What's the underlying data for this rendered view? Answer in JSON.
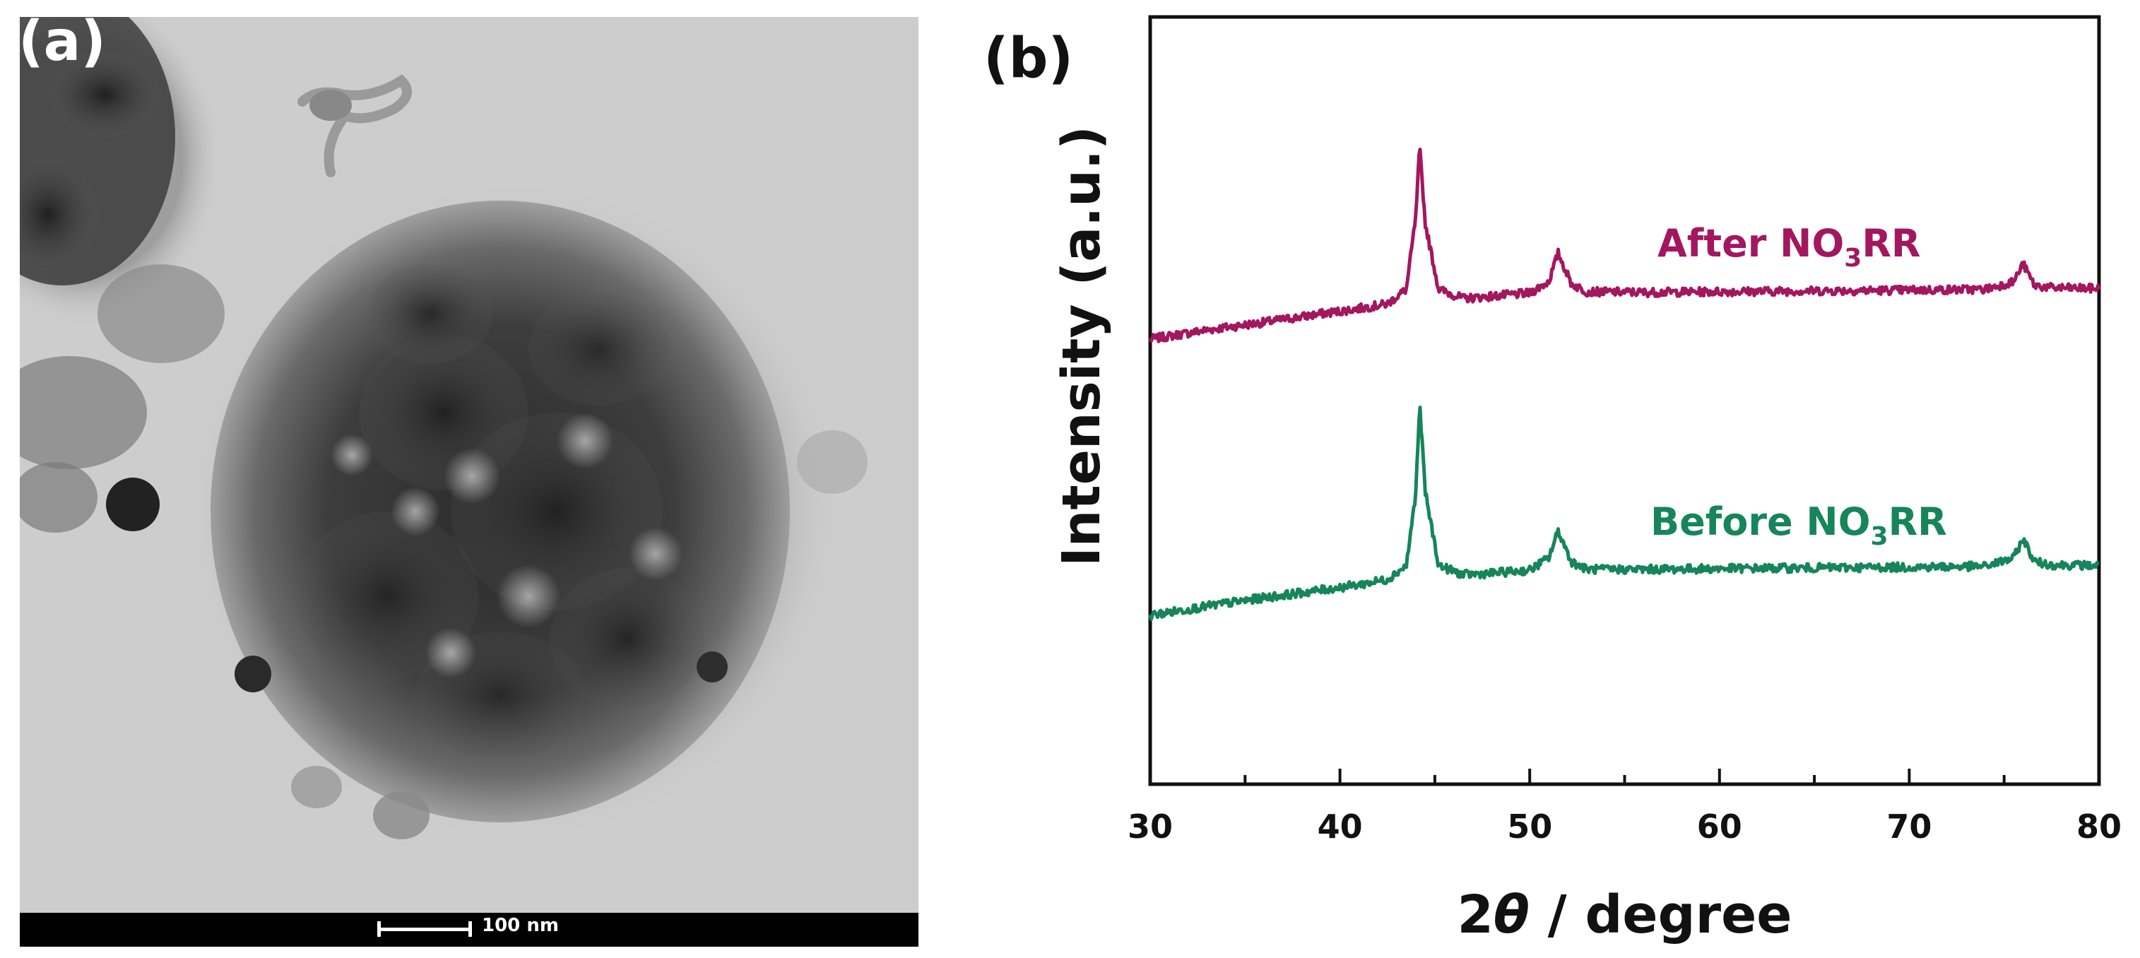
{
  "panel_a": {
    "label": "(a)",
    "scale_bar": "100 nm"
  },
  "panel_b": {
    "label": "(b)"
  },
  "colors": {
    "after": "#a3175f",
    "before": "#16855a",
    "axis": "#111111"
  },
  "chart_data": {
    "type": "line",
    "title": "",
    "xlabel": "2θ / degree",
    "xlabel_prefix": "2",
    "xlabel_symbol": "θ",
    "xlabel_suffix": " / degree",
    "ylabel": "Intensity (a.u.)",
    "xlim": [
      30,
      80
    ],
    "ylim": [
      0,
      100
    ],
    "xticks": [
      "30",
      "40",
      "50",
      "60",
      "70",
      "80"
    ],
    "yticks_shown": false,
    "series": [
      {
        "name": "After NO3RR",
        "label_main": "After NO",
        "label_sub": "3",
        "label_end": "RR",
        "color": "#a3175f",
        "baseline": 58,
        "x": [
          30,
          33,
          36,
          39,
          41,
          42.5,
          43.5,
          44.0,
          44.2,
          44.5,
          45.2,
          46.5,
          48,
          50,
          51,
          51.5,
          52.2,
          53,
          56,
          60,
          65,
          70,
          74,
          75.5,
          76.0,
          76.6,
          77.5,
          80
        ],
        "values": [
          58.0,
          59.2,
          60.2,
          61.3,
          62.0,
          62.6,
          64.5,
          74.0,
          83.0,
          73.0,
          64.5,
          63.3,
          63.6,
          64.0,
          65.5,
          69.2,
          65.2,
          64.2,
          64.1,
          64.2,
          64.3,
          64.4,
          64.5,
          65.5,
          67.8,
          65.0,
          64.7,
          64.6
        ]
      },
      {
        "name": "Before NO3RR",
        "label_main": "Before NO",
        "label_sub": "3",
        "label_end": "RR",
        "color": "#16855a",
        "baseline": 22,
        "x": [
          30,
          33,
          36,
          39,
          41,
          42.5,
          43.5,
          44.0,
          44.2,
          44.5,
          45.2,
          46.5,
          48,
          50,
          51,
          51.5,
          52.2,
          53,
          56,
          60,
          65,
          70,
          74,
          75.5,
          76.0,
          76.6,
          77.5,
          80
        ],
        "values": [
          22.0,
          23.2,
          24.3,
          25.3,
          26.0,
          26.7,
          28.5,
          38.0,
          49.5,
          38.0,
          28.5,
          27.3,
          27.5,
          27.9,
          29.5,
          33.0,
          29.0,
          28.0,
          28.0,
          28.1,
          28.2,
          28.3,
          28.4,
          29.5,
          32.0,
          29.0,
          28.6,
          28.5
        ]
      }
    ]
  }
}
